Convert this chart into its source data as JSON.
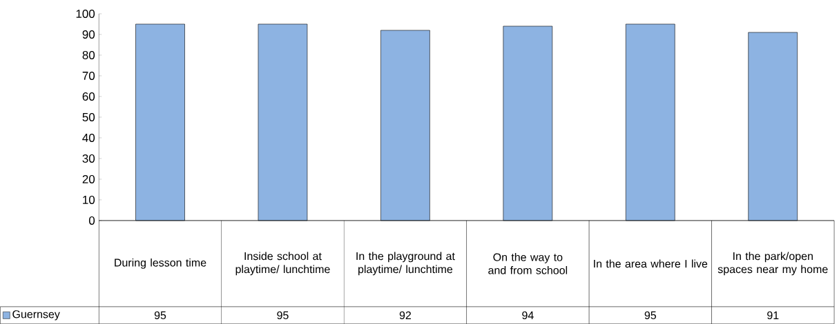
{
  "chart_data": {
    "type": "bar",
    "categories": [
      "During lesson time",
      "Inside school at playtime/ lunchtime",
      "In the playground at playtime/ lunchtime",
      "On the way to and from school",
      "In the area where I live",
      "In the park/open spaces near my home"
    ],
    "series": [
      {
        "name": "Guernsey",
        "color": "#8db3e2",
        "values": [
          95,
          95,
          92,
          94,
          95,
          91
        ]
      }
    ],
    "ylim": [
      0,
      100
    ],
    "yticks": [
      0,
      10,
      20,
      30,
      40,
      50,
      60,
      70,
      80,
      90,
      100
    ],
    "data_labels": true,
    "legend": "bottom",
    "grid": false
  }
}
